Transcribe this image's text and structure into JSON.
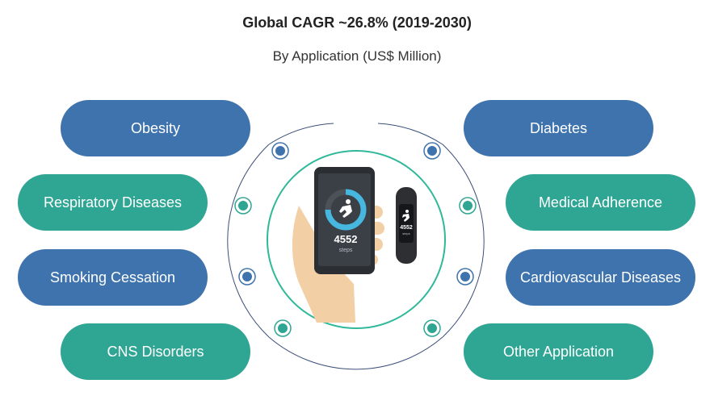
{
  "header": {
    "title": "Global CAGR ~26.8% (2019-2030)",
    "subtitle": "By Application (US$ Million)"
  },
  "colors": {
    "blue": "#3f73ad",
    "teal": "#2fa593",
    "ring": "#2fb89a"
  },
  "applications": {
    "left": [
      "Obesity",
      "Respiratory Diseases",
      "Smoking Cessation",
      "CNS Disorders"
    ],
    "right": [
      "Diabetes",
      "Medical Adherence",
      "Cardiovascular Diseases",
      "Other Application"
    ]
  },
  "illustration": {
    "phone_steps": "4552",
    "phone_unit": "steps",
    "band_steps": "4552",
    "band_unit": "steps",
    "step_progress": 0.75
  }
}
